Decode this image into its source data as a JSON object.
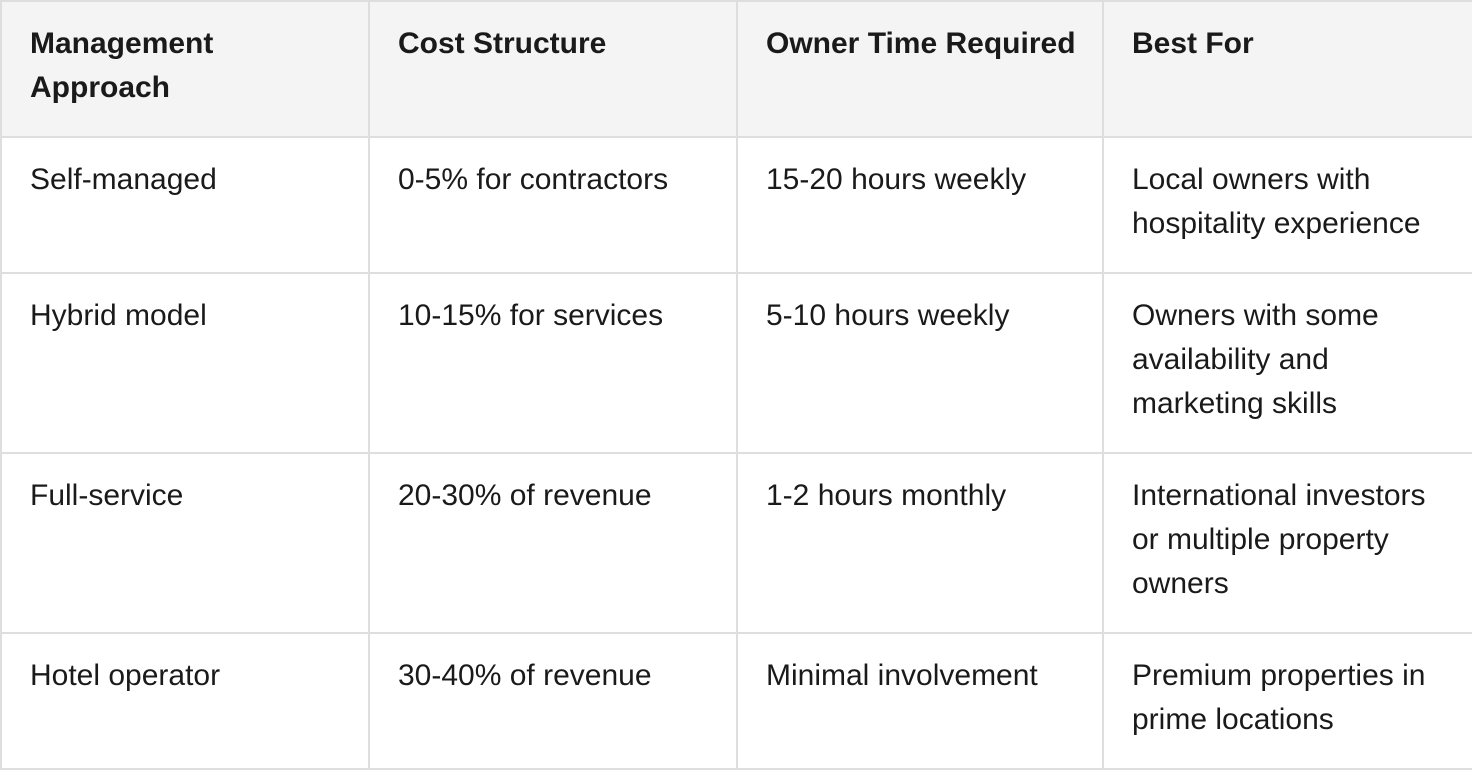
{
  "table": {
    "header": [
      "Management Approach",
      "Cost Structure",
      "Owner Time Required",
      "Best For"
    ],
    "rows": [
      [
        "Self-managed",
        "0-5% for contractors",
        "15-20 hours weekly",
        "Local owners with hospitality experience"
      ],
      [
        "Hybrid model",
        "10-15% for services",
        "5-10 hours weekly",
        "Owners with some availability and marketing skills"
      ],
      [
        "Full-service",
        "20-30% of revenue",
        "1-2 hours monthly",
        "International investors or multiple property owners"
      ],
      [
        "Hotel operator",
        "30-40% of revenue",
        "Minimal involvement",
        "Premium properties in prime locations"
      ]
    ]
  }
}
